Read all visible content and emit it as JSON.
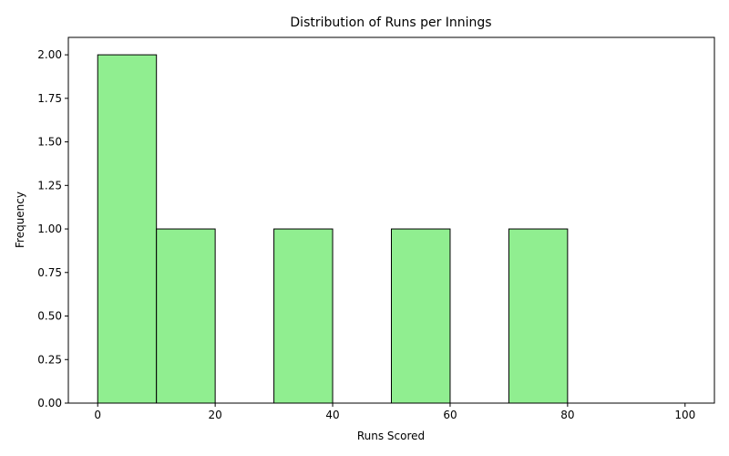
{
  "chart_data": {
    "type": "bar",
    "title": "Distribution of Runs per Innings",
    "xlabel": "Runs Scored",
    "ylabel": "Frequency",
    "bins": [
      {
        "start": 0,
        "end": 10,
        "count": 2
      },
      {
        "start": 10,
        "end": 20,
        "count": 1
      },
      {
        "start": 20,
        "end": 30,
        "count": 0
      },
      {
        "start": 30,
        "end": 40,
        "count": 1
      },
      {
        "start": 40,
        "end": 50,
        "count": 0
      },
      {
        "start": 50,
        "end": 60,
        "count": 1
      },
      {
        "start": 60,
        "end": 70,
        "count": 0
      },
      {
        "start": 70,
        "end": 80,
        "count": 1
      },
      {
        "start": 80,
        "end": 90,
        "count": 0
      },
      {
        "start": 90,
        "end": 100,
        "count": 0
      }
    ],
    "xlim": [
      -5,
      105
    ],
    "ylim": [
      0,
      2.1
    ],
    "x_ticks": [
      0,
      20,
      40,
      60,
      80,
      100
    ],
    "x_tick_labels": [
      "0",
      "20",
      "40",
      "60",
      "80",
      "100"
    ],
    "y_ticks": [
      0,
      0.25,
      0.5,
      0.75,
      1.0,
      1.25,
      1.5,
      1.75,
      2.0
    ],
    "y_tick_labels": [
      "0.00",
      "0.25",
      "0.50",
      "0.75",
      "1.00",
      "1.25",
      "1.50",
      "1.75",
      "2.00"
    ],
    "grid": false,
    "colors": {
      "bar_fill": "#90ee90",
      "bar_edge": "#000000",
      "axis": "#000000"
    }
  }
}
